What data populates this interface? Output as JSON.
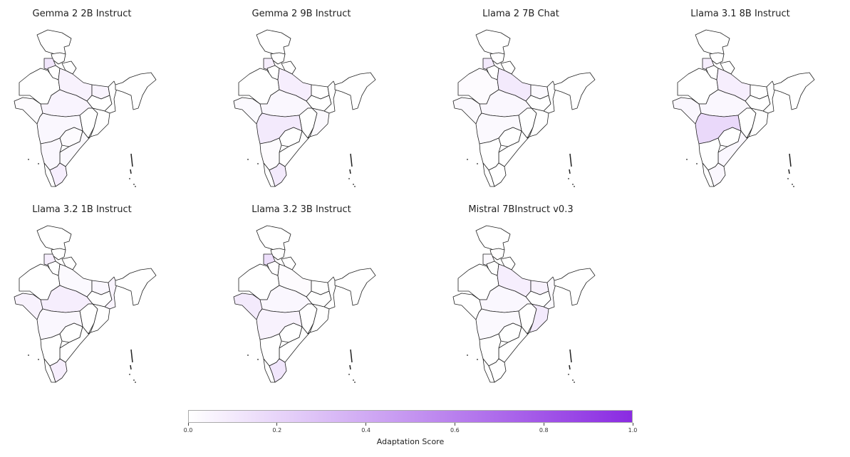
{
  "chart_data": {
    "type": "choropleth",
    "colormap": {
      "min_color": "#ffffff",
      "max_color": "#8a2be2",
      "range": [
        0.0,
        1.0
      ]
    },
    "colorbar": {
      "label": "Adaptation Score",
      "ticks": [
        "0.0",
        "0.2",
        "0.4",
        "0.6",
        "0.8",
        "1.0"
      ],
      "orientation": "horizontal",
      "placement": "bottom"
    },
    "border_color": "#222222",
    "panels": [
      {
        "title": "Gemma 2 2B Instruct",
        "values": {
          "Punjab": 0.12,
          "Uttar Pradesh": 0.06,
          "Madhya Pradesh": 0.05,
          "Maharashtra": 0.04,
          "Karnataka": 0.04,
          "Tamil Nadu": 0.08,
          "Bihar": 0.05,
          "Gujarat": 0.02,
          "Andhra Pradesh": 0.03,
          "Telangana": 0.02
        }
      },
      {
        "title": "Gemma 2 9B Instruct",
        "values": {
          "Punjab": 0.08,
          "Uttar Pradesh": 0.08,
          "Maharashtra": 0.1,
          "Madhya Pradesh": 0.04,
          "Tamil Nadu": 0.1,
          "Gujarat": 0.03,
          "Odisha": 0.03,
          "Karnataka": 0.02
        }
      },
      {
        "title": "Llama 2 7B Chat",
        "values": {
          "Punjab": 0.1,
          "Uttar Pradesh": 0.1,
          "Maharashtra": 0.03,
          "Madhya Pradesh": 0.04,
          "Gujarat": 0.03,
          "Rajasthan": 0.02,
          "Bihar": 0.03
        }
      },
      {
        "title": "Llama 3.1 8B Instruct",
        "values": {
          "Punjab": 0.08,
          "Uttar Pradesh": 0.08,
          "Maharashtra": 0.18,
          "Madhya Pradesh": 0.04,
          "Gujarat": 0.04,
          "Andhra Pradesh": 0.04,
          "Tamil Nadu": 0.04
        }
      },
      {
        "title": "Llama 3.2 1B Instruct",
        "values": {
          "Punjab": 0.08,
          "Gujarat": 0.06,
          "Madhya Pradesh": 0.08,
          "Uttar Pradesh": 0.03,
          "Maharashtra": 0.04,
          "Tamil Nadu": 0.08,
          "West Bengal": 0.05,
          "Bihar": 0.04
        }
      },
      {
        "title": "Llama 3.2 3B Instruct",
        "values": {
          "Punjab": 0.15,
          "Gujarat": 0.1,
          "Madhya Pradesh": 0.04,
          "Maharashtra": 0.06,
          "Tamil Nadu": 0.12,
          "Uttar Pradesh": 0.02
        }
      },
      {
        "title": "Mistral 7BInstruct v0.3",
        "values": {
          "Uttar Pradesh": 0.08,
          "Bihar": 0.06,
          "Odisha": 0.1,
          "Madhya Pradesh": 0.04,
          "Maharashtra": 0.03,
          "Punjab": 0.03,
          "West Bengal": 0.03
        }
      }
    ]
  }
}
